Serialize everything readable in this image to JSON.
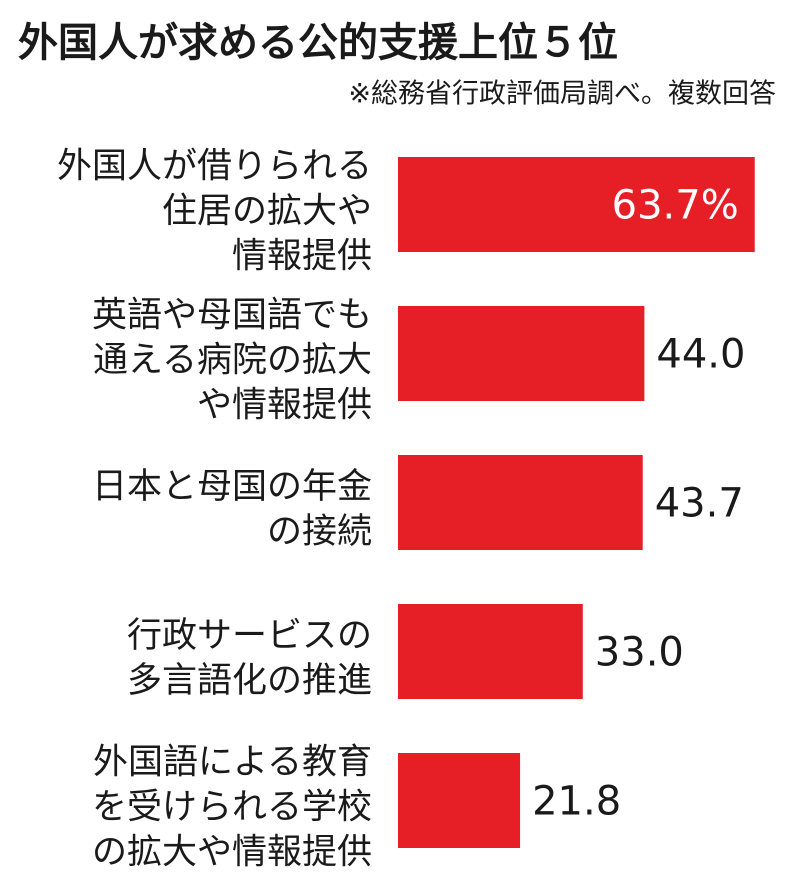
{
  "chart_data": {
    "type": "bar",
    "orientation": "horizontal",
    "title": "外国人が求める公的支援上位５位",
    "subtitle": "※総務省行政評価局調べ。複数回答",
    "categories": [
      [
        "外国人が借りられる",
        "住居の拡大や",
        "情報提供"
      ],
      [
        "英語や母国語でも",
        "通える病院の拡大",
        "や情報提供"
      ],
      [
        "日本と母国の年金",
        "の接続"
      ],
      [
        "行政サービスの",
        "多言語化の推進"
      ],
      [
        "外国語による教育",
        "を受けられる学校",
        "の拡大や情報提供"
      ]
    ],
    "values": [
      63.7,
      44.0,
      43.7,
      33.0,
      21.8
    ],
    "value_labels": [
      "63.7%",
      "44.0",
      "43.7",
      "33.0",
      "21.8"
    ],
    "color": "#e61f26"
  }
}
